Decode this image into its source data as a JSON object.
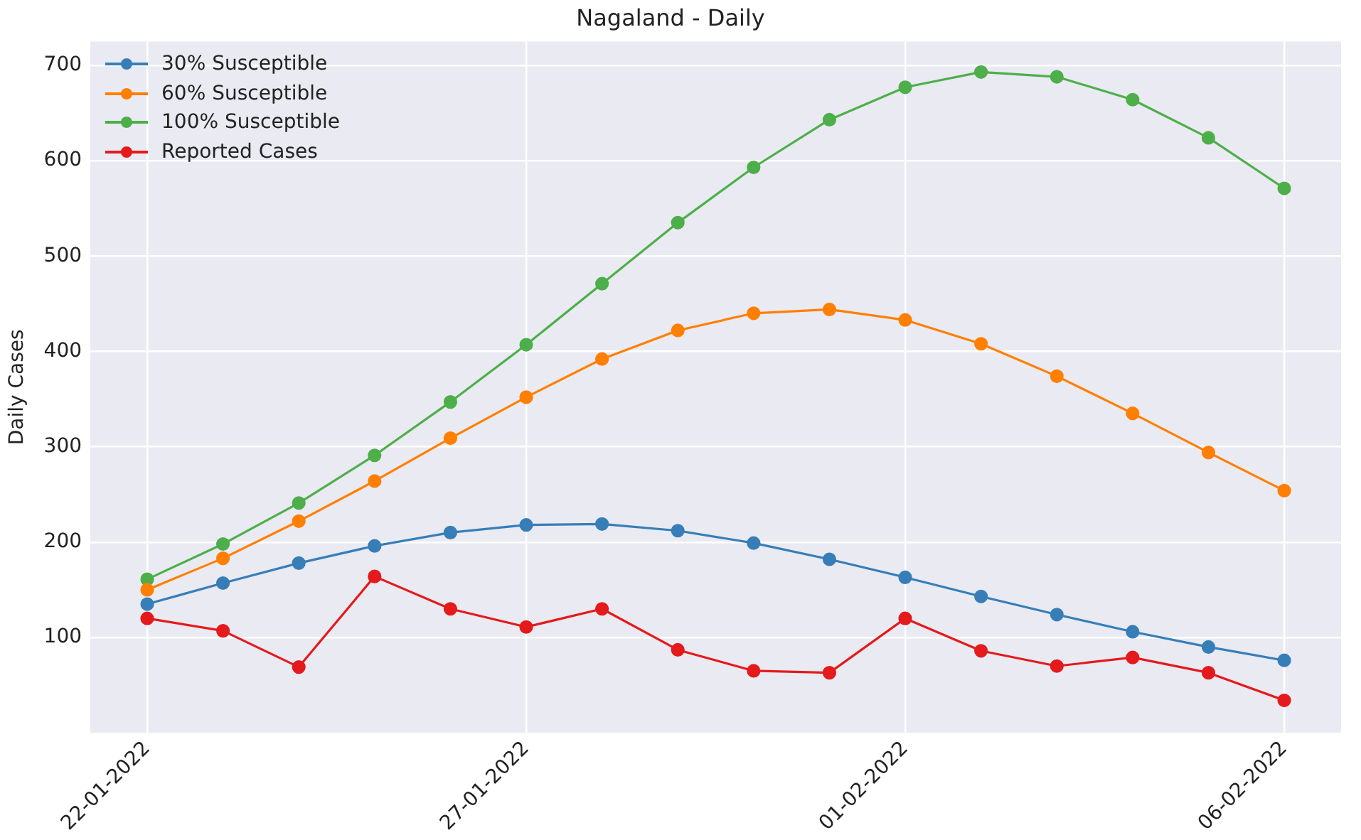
{
  "chart_data": {
    "type": "line",
    "title": "Nagaland - Daily",
    "ylabel": "Daily Cases",
    "x": [
      "2022-01-22",
      "2022-01-23",
      "2022-01-24",
      "2022-01-25",
      "2022-01-26",
      "2022-01-27",
      "2022-01-28",
      "2022-01-29",
      "2022-01-30",
      "2022-01-31",
      "2022-02-01",
      "2022-02-02",
      "2022-02-03",
      "2022-02-04",
      "2022-02-05",
      "2022-02-06"
    ],
    "series": [
      {
        "name": "30% Susceptible",
        "color": "#377eb8",
        "values": [
          135,
          157,
          178,
          196,
          210,
          218,
          219,
          212,
          199,
          182,
          163,
          143,
          124,
          106,
          90,
          76
        ]
      },
      {
        "name": "60% Susceptible",
        "color": "#ff7f00",
        "values": [
          150,
          183,
          222,
          264,
          309,
          352,
          392,
          422,
          440,
          444,
          433,
          408,
          374,
          335,
          294,
          254
        ]
      },
      {
        "name": "100% Susceptible",
        "color": "#4daf4a",
        "values": [
          161,
          198,
          241,
          291,
          347,
          407,
          471,
          535,
          593,
          643,
          677,
          693,
          688,
          664,
          624,
          571
        ]
      },
      {
        "name": "Reported Cases",
        "color": "#e41a1c",
        "values": [
          120,
          107,
          69,
          164,
          130,
          111,
          130,
          87,
          65,
          63,
          120,
          86,
          70,
          79,
          63,
          34
        ]
      }
    ],
    "xlim": [
      "2022-01-21T06:00",
      "2022-02-06T18:00"
    ],
    "xticks": [
      {
        "value": "2022-01-22",
        "label": "22-01-2022"
      },
      {
        "value": "2022-01-27",
        "label": "27-01-2022"
      },
      {
        "value": "2022-02-01",
        "label": "01-02-2022"
      },
      {
        "value": "2022-02-06",
        "label": "06-02-2022"
      }
    ],
    "ylim": [
      0,
      725
    ],
    "yticks": [
      100,
      200,
      300,
      400,
      500,
      600,
      700
    ],
    "grid": true,
    "legend": "top left",
    "marker": "circle",
    "line_style": "solid"
  }
}
